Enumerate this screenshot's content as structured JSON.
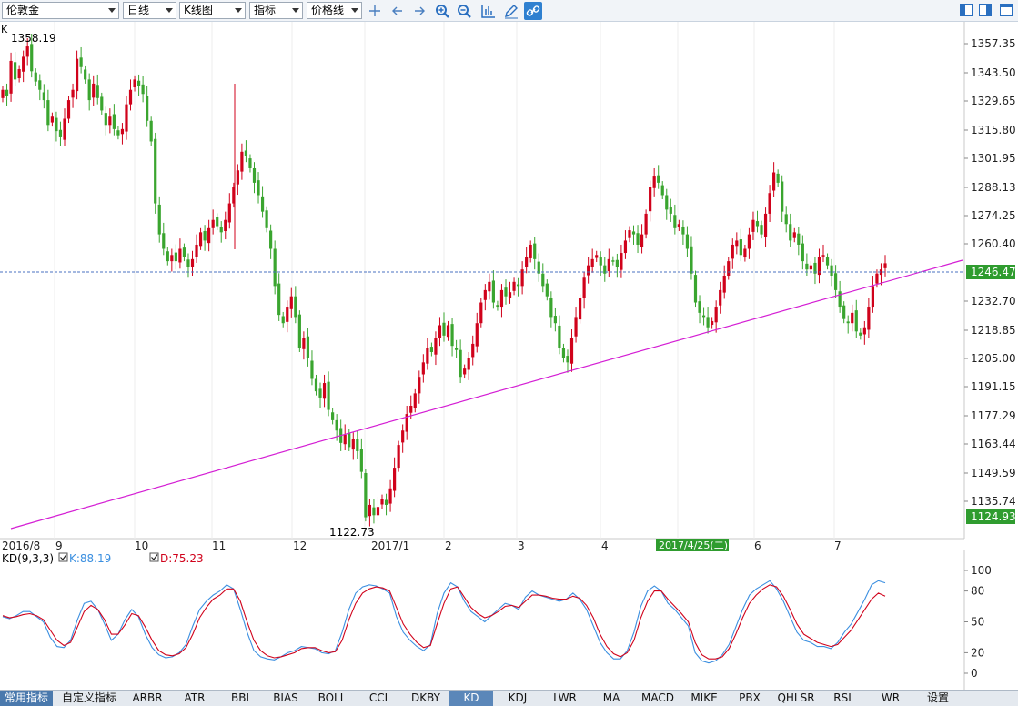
{
  "toolbar": {
    "symbol": "伦敦金",
    "period": "日线",
    "chart_type": "K线图",
    "indicator": "指标",
    "price_line": "价格线",
    "icons": [
      "crosshair-icon",
      "arrow-left-icon",
      "arrow-right-icon",
      "zoom-in-icon",
      "zoom-out-icon",
      "chart-axis-icon",
      "pencil-icon",
      "link-icon",
      "panel-left-icon",
      "panel-split-icon",
      "window-icon"
    ]
  },
  "main_chart": {
    "series_label": "K",
    "high_label": "1358.19",
    "low_label": "1122.73",
    "current_price": "1246.47",
    "last_axis_price": "1124.93",
    "y_ticks": [
      "1357.35",
      "1343.50",
      "1329.65",
      "1315.80",
      "1301.95",
      "1288.13",
      "1274.25",
      "1260.40",
      "1232.70",
      "1218.85",
      "1205.00",
      "1191.15",
      "1177.29",
      "1163.44",
      "1149.59",
      "1135.74"
    ],
    "x_labels": [
      "2016/8",
      "9",
      "10",
      "11",
      "12",
      "2017/1",
      "2",
      "3",
      "4",
      "6",
      "7"
    ],
    "cursor_date": "2017/4/25(二)"
  },
  "kd_chart": {
    "title": "KD(9,3,3)",
    "k_label": "K:88.19",
    "d_label": "D:75.23",
    "y_ticks": [
      "100",
      "80",
      "50",
      "20",
      "0"
    ]
  },
  "colors": {
    "up": "#d0021b",
    "down": "#3aa52f",
    "trend": "#d41ed4",
    "price_line": "#4a70c0",
    "k_line": "#3b8fe0",
    "d_line": "#d0021b"
  },
  "tabs": [
    "常用指标",
    "自定义指标",
    "ARBR",
    "ATR",
    "BBI",
    "BIAS",
    "BOLL",
    "CCI",
    "DKBY",
    "KD",
    "KDJ",
    "LWR",
    "MA",
    "MACD",
    "MIKE",
    "PBX",
    "QHLSR",
    "RSI",
    "WR",
    "设置"
  ],
  "chart_data": {
    "type": "candlestick",
    "symbol": "伦敦金",
    "ylim": [
      1122.73,
      1358.19
    ],
    "closes": [
      1335,
      1332,
      1349,
      1340,
      1345,
      1351,
      1356,
      1344,
      1339,
      1335,
      1330,
      1318,
      1322,
      1315,
      1312,
      1321,
      1330,
      1335,
      1350,
      1346,
      1340,
      1330,
      1338,
      1331,
      1325,
      1318,
      1322,
      1316,
      1313,
      1316,
      1328,
      1335,
      1340,
      1337,
      1333,
      1320,
      1310,
      1280,
      1265,
      1258,
      1252,
      1255,
      1252,
      1258,
      1254,
      1249,
      1253,
      1260,
      1266,
      1262,
      1268,
      1272,
      1269,
      1266,
      1272,
      1280,
      1288,
      1296,
      1305,
      1303,
      1297,
      1290,
      1284,
      1276,
      1268,
      1258,
      1240,
      1226,
      1222,
      1230,
      1235,
      1225,
      1210,
      1215,
      1205,
      1195,
      1189,
      1186,
      1193,
      1180,
      1175,
      1170,
      1164,
      1168,
      1162,
      1166,
      1160,
      1150,
      1128,
      1134,
      1129,
      1133,
      1137,
      1134,
      1142,
      1152,
      1163,
      1170,
      1178,
      1182,
      1188,
      1196,
      1203,
      1210,
      1208,
      1215,
      1221,
      1216,
      1221,
      1211,
      1209,
      1196,
      1200,
      1205,
      1212,
      1222,
      1232,
      1238,
      1242,
      1232,
      1230,
      1238,
      1235,
      1237,
      1242,
      1240,
      1248,
      1254,
      1260,
      1253,
      1246,
      1240,
      1235,
      1225,
      1222,
      1210,
      1205,
      1203,
      1215,
      1225,
      1234,
      1244,
      1250,
      1253,
      1255,
      1250,
      1246,
      1253,
      1252,
      1249,
      1256,
      1262,
      1267,
      1265,
      1260,
      1265,
      1275,
      1288,
      1293,
      1290,
      1284,
      1277,
      1275,
      1268,
      1270,
      1265,
      1258,
      1246,
      1232,
      1227,
      1225,
      1220,
      1223,
      1230,
      1238,
      1245,
      1252,
      1260,
      1262,
      1255,
      1258,
      1265,
      1272,
      1269,
      1265,
      1275,
      1285,
      1295,
      1290,
      1276,
      1270,
      1262,
      1266,
      1260,
      1252,
      1248,
      1250,
      1246,
      1254,
      1255,
      1250,
      1245,
      1238,
      1230,
      1224,
      1222,
      1227,
      1218,
      1216,
      1220,
      1230,
      1240,
      1246,
      1248,
      1251
    ],
    "kd": {
      "K": [
        55,
        53,
        56,
        60,
        60,
        55,
        50,
        35,
        26,
        25,
        32,
        52,
        68,
        70,
        62,
        48,
        32,
        38,
        52,
        62,
        55,
        38,
        25,
        18,
        15,
        16,
        20,
        28,
        46,
        62,
        70,
        76,
        80,
        86,
        82,
        62,
        40,
        22,
        16,
        14,
        13,
        16,
        20,
        22,
        26,
        25,
        24,
        20,
        19,
        22,
        40,
        62,
        78,
        84,
        86,
        85,
        82,
        78,
        55,
        40,
        32,
        26,
        22,
        28,
        58,
        78,
        88,
        84,
        70,
        60,
        55,
        50,
        56,
        62,
        68,
        66,
        62,
        74,
        80,
        76,
        74,
        72,
        70,
        72,
        78,
        72,
        62,
        46,
        30,
        20,
        14,
        14,
        22,
        40,
        65,
        80,
        85,
        80,
        68,
        62,
        54,
        46,
        20,
        12,
        10,
        12,
        18,
        28,
        45,
        62,
        76,
        82,
        86,
        90,
        82,
        70,
        55,
        40,
        32,
        30,
        26,
        26,
        24,
        30,
        40,
        48,
        60,
        72,
        86,
        90,
        88
      ],
      "D": [
        56,
        54,
        55,
        57,
        58,
        56,
        52,
        42,
        32,
        27,
        30,
        45,
        60,
        66,
        62,
        52,
        38,
        38,
        47,
        58,
        56,
        45,
        32,
        22,
        18,
        17,
        19,
        25,
        38,
        54,
        64,
        72,
        76,
        82,
        82,
        70,
        50,
        32,
        22,
        17,
        15,
        16,
        18,
        20,
        24,
        25,
        25,
        22,
        20,
        21,
        32,
        52,
        68,
        78,
        82,
        84,
        83,
        80,
        64,
        48,
        38,
        30,
        25,
        27,
        48,
        68,
        82,
        84,
        74,
        64,
        58,
        54,
        56,
        60,
        65,
        66,
        64,
        70,
        76,
        76,
        75,
        73,
        72,
        72,
        75,
        73,
        66,
        54,
        38,
        26,
        19,
        16,
        20,
        32,
        54,
        70,
        80,
        80,
        72,
        65,
        58,
        50,
        30,
        18,
        14,
        14,
        16,
        24,
        38,
        54,
        68,
        76,
        82,
        86,
        84,
        75,
        62,
        48,
        38,
        34,
        30,
        28,
        26,
        28,
        35,
        42,
        52,
        62,
        72,
        78,
        75
      ]
    }
  }
}
